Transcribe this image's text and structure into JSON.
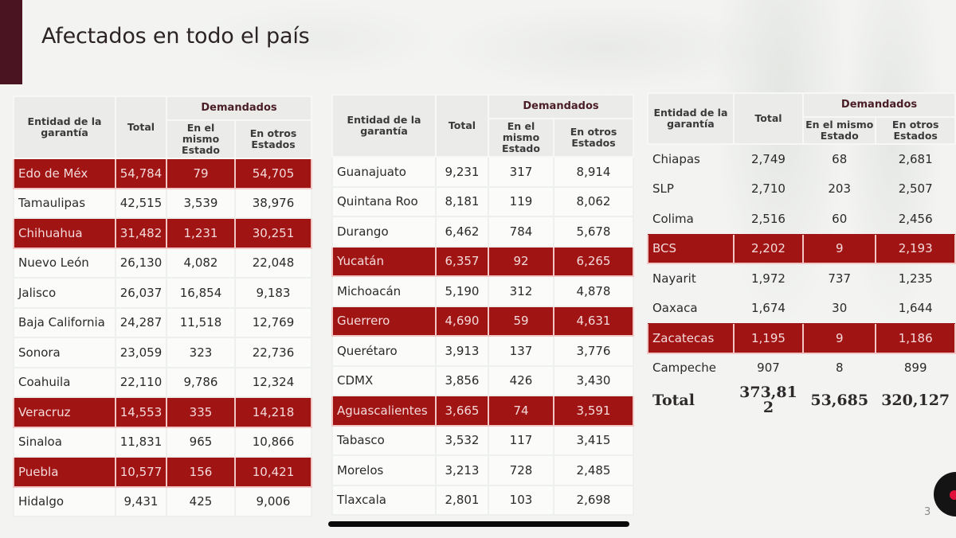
{
  "slide": {
    "title": "Afectados en todo el país",
    "page_number": "3",
    "highlight_color": "#a01414",
    "accent_bar_color": "#4a1520"
  },
  "headers": {
    "entidad": "Entidad de la garantía",
    "total": "Total",
    "demandados": "Demandados",
    "mismo_estado": "En el mismo Estado",
    "otros_estados": "En otros Estados"
  },
  "tables": [
    {
      "rows": [
        {
          "entidad": "Edo de Méx",
          "total": "54,784",
          "mismo": "79",
          "otros": "54,705",
          "highlight": true
        },
        {
          "entidad": "Tamaulipas",
          "total": "42,515",
          "mismo": "3,539",
          "otros": "38,976",
          "highlight": false
        },
        {
          "entidad": "Chihuahua",
          "total": "31,482",
          "mismo": "1,231",
          "otros": "30,251",
          "highlight": true
        },
        {
          "entidad": "Nuevo León",
          "total": "26,130",
          "mismo": "4,082",
          "otros": "22,048",
          "highlight": false
        },
        {
          "entidad": "Jalisco",
          "total": "26,037",
          "mismo": "16,854",
          "otros": "9,183",
          "highlight": false
        },
        {
          "entidad": "Baja California",
          "total": "24,287",
          "mismo": "11,518",
          "otros": "12,769",
          "highlight": false
        },
        {
          "entidad": "Sonora",
          "total": "23,059",
          "mismo": "323",
          "otros": "22,736",
          "highlight": false
        },
        {
          "entidad": "Coahuila",
          "total": "22,110",
          "mismo": "9,786",
          "otros": "12,324",
          "highlight": false
        },
        {
          "entidad": "Veracruz",
          "total": "14,553",
          "mismo": "335",
          "otros": "14,218",
          "highlight": true
        },
        {
          "entidad": "Sinaloa",
          "total": "11,831",
          "mismo": "965",
          "otros": "10,866",
          "highlight": false
        },
        {
          "entidad": "Puebla",
          "total": "10,577",
          "mismo": "156",
          "otros": "10,421",
          "highlight": true
        },
        {
          "entidad": "Hidalgo",
          "total": "9,431",
          "mismo": "425",
          "otros": "9,006",
          "highlight": false
        }
      ]
    },
    {
      "rows": [
        {
          "entidad": "Guanajuato",
          "total": "9,231",
          "mismo": "317",
          "otros": "8,914",
          "highlight": false
        },
        {
          "entidad": "Quintana Roo",
          "total": "8,181",
          "mismo": "119",
          "otros": "8,062",
          "highlight": false
        },
        {
          "entidad": "Durango",
          "total": "6,462",
          "mismo": "784",
          "otros": "5,678",
          "highlight": false
        },
        {
          "entidad": "Yucatán",
          "total": "6,357",
          "mismo": "92",
          "otros": "6,265",
          "highlight": true
        },
        {
          "entidad": "Michoacán",
          "total": "5,190",
          "mismo": "312",
          "otros": "4,878",
          "highlight": false
        },
        {
          "entidad": "Guerrero",
          "total": "4,690",
          "mismo": "59",
          "otros": "4,631",
          "highlight": true
        },
        {
          "entidad": "Querétaro",
          "total": "3,913",
          "mismo": "137",
          "otros": "3,776",
          "highlight": false
        },
        {
          "entidad": "CDMX",
          "total": "3,856",
          "mismo": "426",
          "otros": "3,430",
          "highlight": false
        },
        {
          "entidad": "Aguascalientes",
          "total": "3,665",
          "mismo": "74",
          "otros": "3,591",
          "highlight": true
        },
        {
          "entidad": "Tabasco",
          "total": "3,532",
          "mismo": "117",
          "otros": "3,415",
          "highlight": false
        },
        {
          "entidad": "Morelos",
          "total": "3,213",
          "mismo": "728",
          "otros": "2,485",
          "highlight": false
        },
        {
          "entidad": "Tlaxcala",
          "total": "2,801",
          "mismo": "103",
          "otros": "2,698",
          "highlight": false
        }
      ]
    },
    {
      "rows": [
        {
          "entidad": "Chiapas",
          "total": "2,749",
          "mismo": "68",
          "otros": "2,681",
          "highlight": false
        },
        {
          "entidad": "SLP",
          "total": "2,710",
          "mismo": "203",
          "otros": "2,507",
          "highlight": false
        },
        {
          "entidad": "Colima",
          "total": "2,516",
          "mismo": "60",
          "otros": "2,456",
          "highlight": false
        },
        {
          "entidad": "BCS",
          "total": "2,202",
          "mismo": "9",
          "otros": "2,193",
          "highlight": true
        },
        {
          "entidad": "Nayarit",
          "total": "1,972",
          "mismo": "737",
          "otros": "1,235",
          "highlight": false
        },
        {
          "entidad": "Oaxaca",
          "total": "1,674",
          "mismo": "30",
          "otros": "1,644",
          "highlight": false
        },
        {
          "entidad": "Zacatecas",
          "total": "1,195",
          "mismo": "9",
          "otros": "1,186",
          "highlight": true
        },
        {
          "entidad": "Campeche",
          "total": "907",
          "mismo": "8",
          "otros": "899",
          "highlight": false
        }
      ],
      "total_row": {
        "entidad": "Total",
        "total": "373,812",
        "mismo": "53,685",
        "otros": "320,127"
      }
    }
  ]
}
